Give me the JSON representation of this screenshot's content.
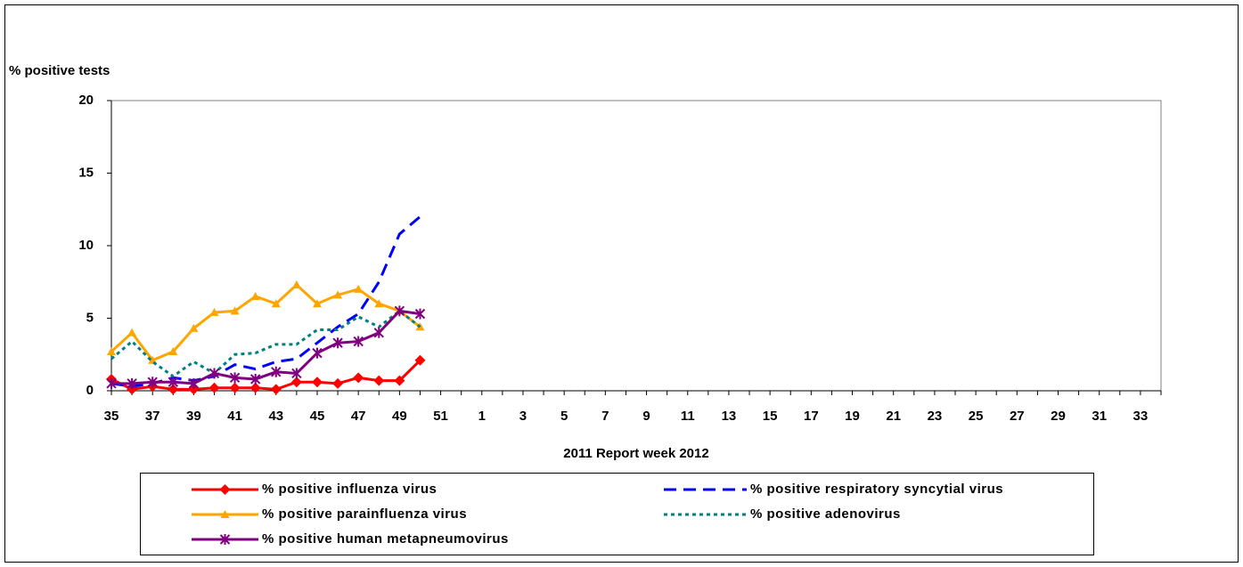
{
  "chart_data": {
    "type": "line",
    "y_label": "% positive tests",
    "x_label": "2011 Report week   2012",
    "categories": [
      "35",
      null,
      "37",
      null,
      "39",
      null,
      "41",
      null,
      "43",
      null,
      "45",
      null,
      "47",
      null,
      "49",
      null,
      "51",
      null,
      "1",
      null,
      "3",
      null,
      "5",
      null,
      "7",
      null,
      "9",
      null,
      "11",
      null,
      "13",
      null,
      "15",
      null,
      "17",
      null,
      "19",
      null,
      "21",
      null,
      "23",
      null,
      "25",
      null,
      "27",
      null,
      "29",
      null,
      "31",
      null,
      "33",
      null
    ],
    "ylim": [
      0,
      20
    ],
    "yticks": [
      0,
      5,
      10,
      15,
      20
    ],
    "series": [
      {
        "name": "% positive influenza virus",
        "color": "#ff0000",
        "marker": "diamond",
        "dash": "solid",
        "values": [
          0.8,
          0.1,
          0.3,
          0.1,
          0.1,
          0.2,
          0.2,
          0.2,
          0.1,
          0.6,
          0.6,
          0.5,
          0.9,
          0.7,
          0.7,
          2.1,
          null,
          null,
          null,
          null,
          null,
          null,
          null,
          null,
          null,
          null,
          null,
          null,
          null,
          null,
          null,
          null,
          null,
          null,
          null,
          null,
          null,
          null,
          null,
          null,
          null,
          null,
          null,
          null,
          null,
          null,
          null,
          null,
          null,
          null,
          null,
          null
        ]
      },
      {
        "name": "% positive respiratory syncytial virus",
        "color": "#0000ff",
        "marker": "none",
        "dash": "dash",
        "values": [
          0.5,
          0.3,
          0.5,
          0.9,
          0.7,
          1.0,
          1.8,
          1.5,
          2.0,
          2.2,
          3.3,
          4.4,
          5.3,
          7.5,
          10.8,
          12.0,
          null,
          null,
          null,
          null,
          null,
          null,
          null,
          null,
          null,
          null,
          null,
          null,
          null,
          null,
          null,
          null,
          null,
          null,
          null,
          null,
          null,
          null,
          null,
          null,
          null,
          null,
          null,
          null,
          null,
          null,
          null,
          null,
          null,
          null,
          null,
          null
        ]
      },
      {
        "name": "% positive parainfluenza virus",
        "color": "#ffa500",
        "marker": "triangle",
        "dash": "solid",
        "values": [
          2.7,
          4.0,
          2.1,
          2.7,
          4.3,
          5.4,
          5.5,
          6.5,
          6.0,
          7.3,
          6.0,
          6.6,
          7.0,
          6.0,
          5.5,
          4.4,
          null,
          null,
          null,
          null,
          null,
          null,
          null,
          null,
          null,
          null,
          null,
          null,
          null,
          null,
          null,
          null,
          null,
          null,
          null,
          null,
          null,
          null,
          null,
          null,
          null,
          null,
          null,
          null,
          null,
          null,
          null,
          null,
          null,
          null,
          null,
          null
        ]
      },
      {
        "name": "% positive adenovirus",
        "color": "#008080",
        "marker": "none",
        "dash": "dot",
        "values": [
          2.2,
          3.4,
          2.0,
          1.0,
          2.0,
          1.2,
          2.5,
          2.6,
          3.2,
          3.2,
          4.2,
          4.2,
          5.1,
          4.4,
          5.5,
          4.4,
          null,
          null,
          null,
          null,
          null,
          null,
          null,
          null,
          null,
          null,
          null,
          null,
          null,
          null,
          null,
          null,
          null,
          null,
          null,
          null,
          null,
          null,
          null,
          null,
          null,
          null,
          null,
          null,
          null,
          null,
          null,
          null,
          null,
          null,
          null,
          null
        ]
      },
      {
        "name": "% positive human metapneumovirus",
        "color": "#800080",
        "marker": "star",
        "dash": "solid",
        "values": [
          0.5,
          0.5,
          0.6,
          0.6,
          0.5,
          1.2,
          0.9,
          0.8,
          1.3,
          1.2,
          2.6,
          3.3,
          3.4,
          4.0,
          5.5,
          5.3,
          null,
          null,
          null,
          null,
          null,
          null,
          null,
          null,
          null,
          null,
          null,
          null,
          null,
          null,
          null,
          null,
          null,
          null,
          null,
          null,
          null,
          null,
          null,
          null,
          null,
          null,
          null,
          null,
          null,
          null,
          null,
          null,
          null,
          null,
          null,
          null
        ]
      }
    ]
  }
}
